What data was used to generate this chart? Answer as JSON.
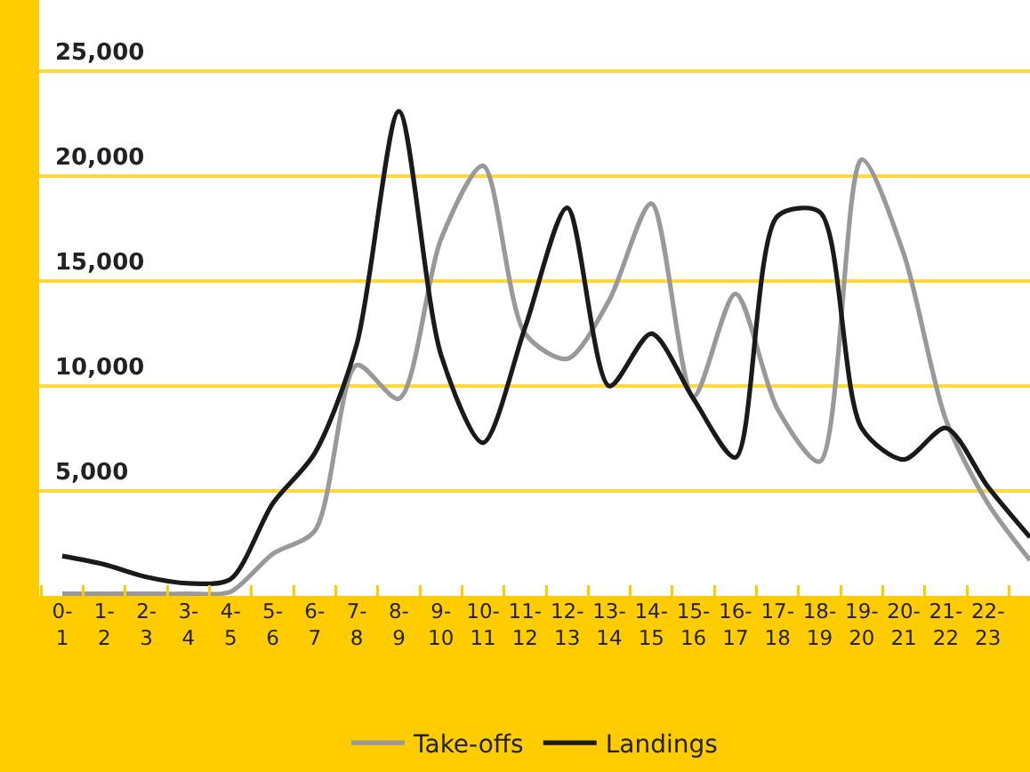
{
  "chart_data": {
    "type": "line",
    "categories": [
      "0-1",
      "1-2",
      "2-3",
      "3-4",
      "4-5",
      "5-6",
      "6-7",
      "7-8",
      "8-9",
      "9-10",
      "10-11",
      "11-12",
      "12-13",
      "13-14",
      "14-15",
      "15-16",
      "16-17",
      "17-18",
      "18-19",
      "19-20",
      "20-21",
      "21-22",
      "22-23",
      null
    ],
    "series": [
      {
        "name": "Take-offs",
        "color": "#999999",
        "values": [
          100,
          100,
          100,
          100,
          200,
          2000,
          3100,
          11000,
          9400,
          17000,
          20500,
          12500,
          11300,
          14100,
          18700,
          9500,
          14400,
          8900,
          6400,
          20800,
          16300,
          8400,
          4400,
          1700
        ]
      },
      {
        "name": "Landings",
        "color": "#1a1a1a",
        "values": [
          1900,
          1500,
          900,
          600,
          800,
          4400,
          6800,
          12000,
          23100,
          11500,
          7300,
          12800,
          18500,
          10000,
          12500,
          9400,
          6600,
          18100,
          18300,
          8000,
          6500,
          8000,
          5200,
          2800
        ]
      }
    ],
    "ylim": [
      0,
      28400
    ],
    "yticks": [
      {
        "value": 5000,
        "label": "5,000"
      },
      {
        "value": 10000,
        "label": "10,000"
      },
      {
        "value": 15000,
        "label": "15,000"
      },
      {
        "value": 20000,
        "label": "20,000"
      },
      {
        "value": 25000,
        "label": "25,000"
      }
    ],
    "grid": "y",
    "legend": "bottom",
    "marker": "none",
    "line_style": "solid"
  }
}
